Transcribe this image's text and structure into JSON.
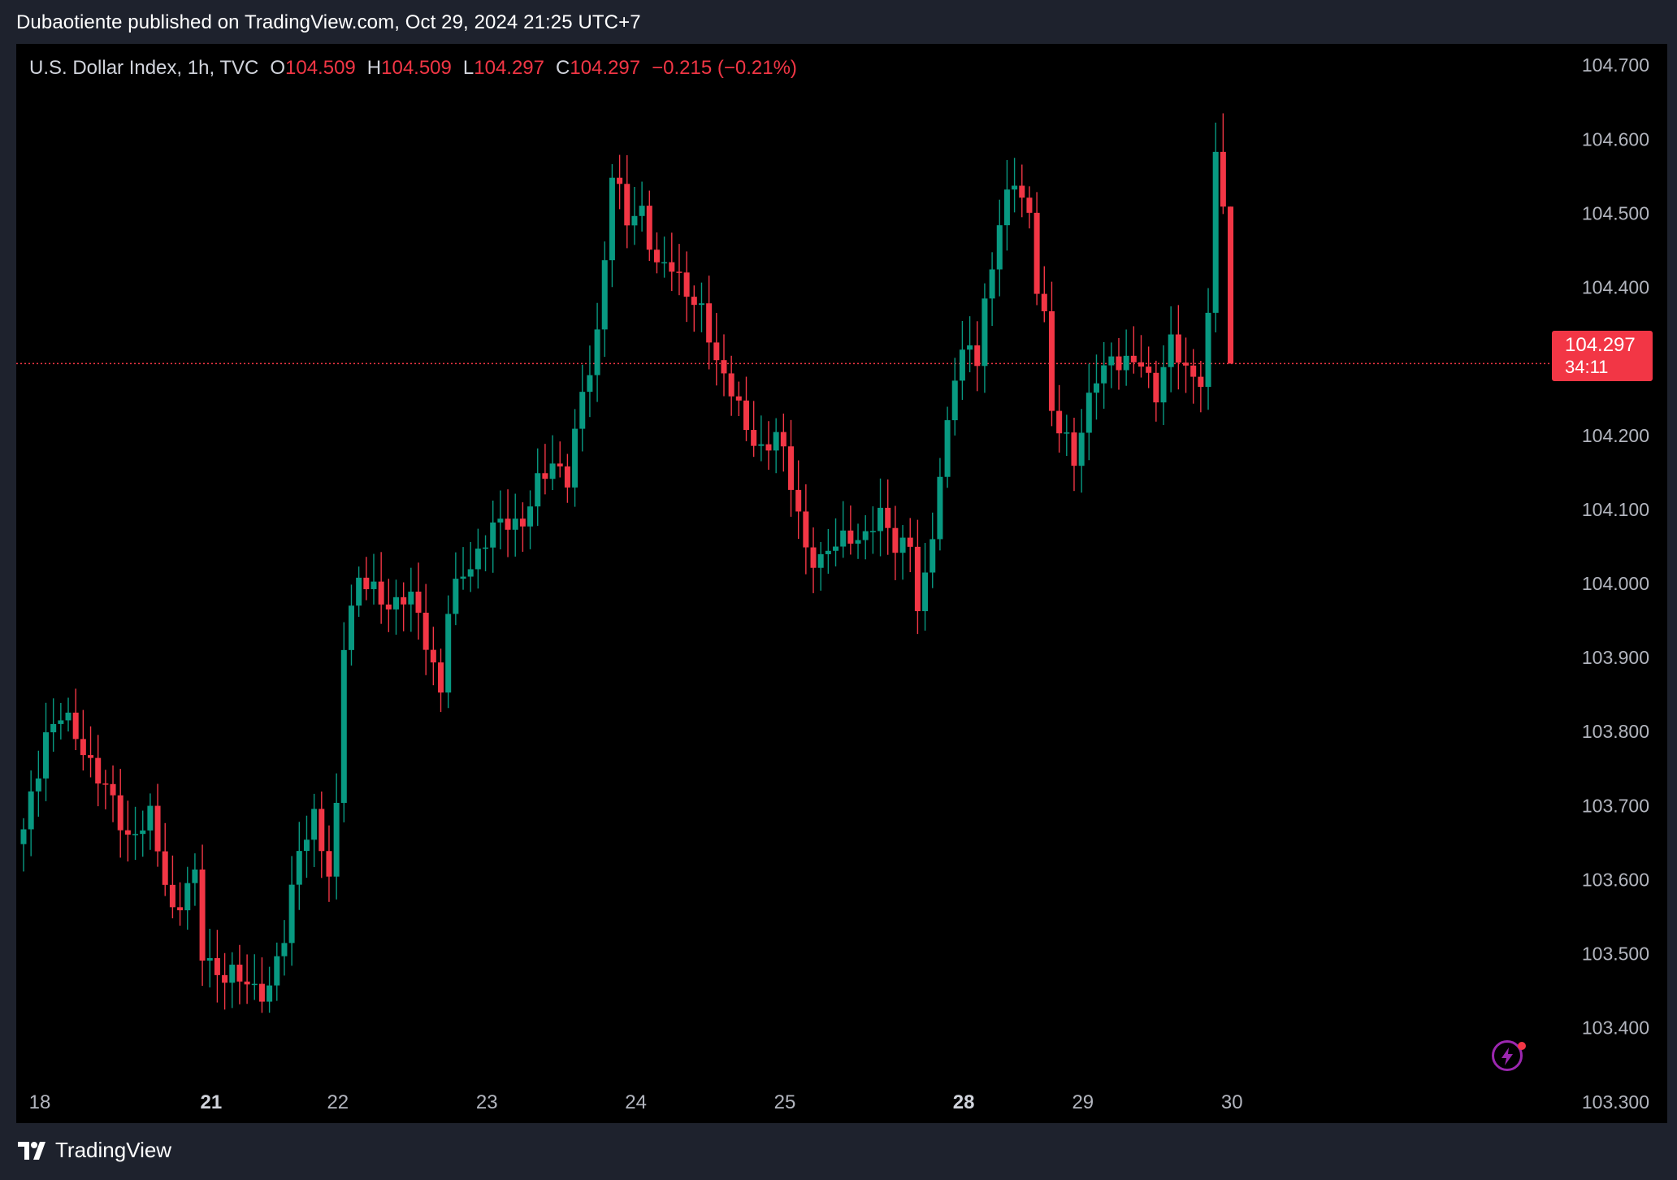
{
  "header": {
    "publisher_text": "Dubaotiente published on TradingView.com, Oct 29, 2024 21:25 UTC+7"
  },
  "legend": {
    "symbol_text": "U.S. Dollar Index, 1h, TVC",
    "open_label": "O",
    "open_value": "104.509",
    "high_label": "H",
    "high_value": "104.509",
    "low_label": "L",
    "low_value": "104.297",
    "close_label": "C",
    "close_value": "104.297",
    "change_text": "−0.215 (−0.21%)"
  },
  "price_tag": {
    "price": "104.297",
    "countdown": "34:11"
  },
  "footer": {
    "brand": "TradingView"
  },
  "icons": {
    "logo": "tradingview-logo-icon",
    "bolt": "lightning-bolt-icon"
  },
  "colors": {
    "up": "#089981",
    "down": "#f23645",
    "background": "#000000",
    "frame": "#1e222d",
    "axis_text": "#b2b5be"
  },
  "chart_data": {
    "type": "candlestick",
    "title": "U.S. Dollar Index, 1h, TVC",
    "ylim": [
      103.28,
      104.72
    ],
    "y_ticks": [
      "104.700",
      "104.600",
      "104.500",
      "104.400",
      "104.300",
      "104.200",
      "104.100",
      "104.000",
      "103.900",
      "103.800",
      "103.700",
      "103.600",
      "103.500",
      "103.400",
      "103.300"
    ],
    "x_ticks": [
      {
        "label": "18",
        "index": 0,
        "bold": false
      },
      {
        "label": "21",
        "index": 23,
        "bold": true
      },
      {
        "label": "22",
        "index": 40,
        "bold": false
      },
      {
        "label": "23",
        "index": 60,
        "bold": false
      },
      {
        "label": "24",
        "index": 80,
        "bold": false
      },
      {
        "label": "25",
        "index": 100,
        "bold": false
      },
      {
        "label": "28",
        "index": 124,
        "bold": true
      },
      {
        "label": "29",
        "index": 140,
        "bold": false
      },
      {
        "label": "30",
        "index": 160,
        "bold": false
      }
    ],
    "last_price": 104.297,
    "grid": false,
    "keypoints": [
      [
        0,
        103.66
      ],
      [
        3,
        103.8
      ],
      [
        5,
        103.82
      ],
      [
        8,
        103.78
      ],
      [
        11,
        103.72
      ],
      [
        14,
        103.66
      ],
      [
        17,
        103.68
      ],
      [
        20,
        103.56
      ],
      [
        23,
        103.6
      ],
      [
        24,
        103.5
      ],
      [
        27,
        103.47
      ],
      [
        30,
        103.46
      ],
      [
        33,
        103.45
      ],
      [
        35,
        103.52
      ],
      [
        37,
        103.65
      ],
      [
        39,
        103.68
      ],
      [
        41,
        103.6
      ],
      [
        42,
        103.7
      ],
      [
        43,
        103.93
      ],
      [
        45,
        104.0
      ],
      [
        47,
        103.99
      ],
      [
        50,
        103.97
      ],
      [
        52,
        103.98
      ],
      [
        54,
        103.93
      ],
      [
        56,
        103.85
      ],
      [
        57,
        103.96
      ],
      [
        59,
        104.02
      ],
      [
        61,
        104.04
      ],
      [
        63,
        104.07
      ],
      [
        65,
        104.09
      ],
      [
        67,
        104.08
      ],
      [
        69,
        104.13
      ],
      [
        71,
        104.17
      ],
      [
        73,
        104.14
      ],
      [
        75,
        104.25
      ],
      [
        77,
        104.34
      ],
      [
        79,
        104.55
      ],
      [
        81,
        104.49
      ],
      [
        83,
        104.51
      ],
      [
        85,
        104.42
      ],
      [
        87,
        104.43
      ],
      [
        89,
        104.4
      ],
      [
        91,
        104.36
      ],
      [
        93,
        104.3
      ],
      [
        95,
        104.27
      ],
      [
        97,
        104.2
      ],
      [
        99,
        104.18
      ],
      [
        101,
        104.21
      ],
      [
        103,
        104.13
      ],
      [
        105,
        104.05
      ],
      [
        107,
        104.03
      ],
      [
        109,
        104.05
      ],
      [
        111,
        104.07
      ],
      [
        113,
        104.06
      ],
      [
        115,
        104.09
      ],
      [
        117,
        104.06
      ],
      [
        119,
        104.05
      ],
      [
        120,
        103.96
      ],
      [
        121,
        104.0
      ],
      [
        123,
        104.15
      ],
      [
        125,
        104.28
      ],
      [
        127,
        104.32
      ],
      [
        128,
        104.31
      ],
      [
        129,
        104.38
      ],
      [
        131,
        104.48
      ],
      [
        133,
        104.55
      ],
      [
        135,
        104.5
      ],
      [
        136,
        104.4
      ],
      [
        137,
        104.35
      ],
      [
        138,
        104.23
      ],
      [
        140,
        104.2
      ],
      [
        141,
        104.17
      ],
      [
        142,
        104.2
      ],
      [
        144,
        104.28
      ],
      [
        146,
        104.31
      ],
      [
        148,
        104.29
      ],
      [
        150,
        104.3
      ],
      [
        152,
        104.26
      ],
      [
        154,
        104.32
      ],
      [
        156,
        104.29
      ],
      [
        158,
        104.28
      ],
      [
        159,
        104.35
      ],
      [
        160,
        104.58
      ],
      [
        161,
        104.509
      ],
      [
        162,
        104.297
      ]
    ]
  }
}
